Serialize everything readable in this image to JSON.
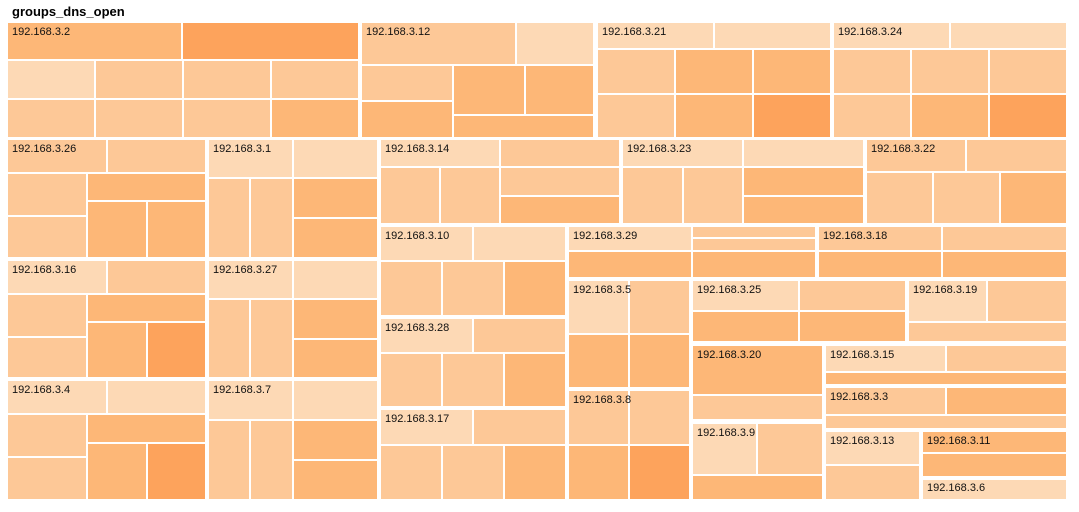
{
  "title": "groups_dns_open",
  "chart_data": {
    "type": "treemap",
    "title": "groups_dns_open",
    "color_scale": [
      "#fdd9b5",
      "#fdc897",
      "#fdb777",
      "#fda35c"
    ],
    "groups": [
      {
        "label": "192.168.3.2"
      },
      {
        "label": "192.168.3.12"
      },
      {
        "label": "192.168.3.21"
      },
      {
        "label": "192.168.3.24"
      },
      {
        "label": "192.168.3.26"
      },
      {
        "label": "192.168.3.1"
      },
      {
        "label": "192.168.3.14"
      },
      {
        "label": "192.168.3.23"
      },
      {
        "label": "192.168.3.22"
      },
      {
        "label": "192.168.3.10"
      },
      {
        "label": "192.168.3.29"
      },
      {
        "label": "192.168.3.18"
      },
      {
        "label": "192.168.3.16"
      },
      {
        "label": "192.168.3.27"
      },
      {
        "label": "192.168.3.5"
      },
      {
        "label": "192.168.3.25"
      },
      {
        "label": "192.168.3.19"
      },
      {
        "label": "192.168.3.28"
      },
      {
        "label": "192.168.3.20"
      },
      {
        "label": "192.168.3.15"
      },
      {
        "label": "192.168.3.4"
      },
      {
        "label": "192.168.3.7"
      },
      {
        "label": "192.168.3.8"
      },
      {
        "label": "192.168.3.3"
      },
      {
        "label": "192.168.3.17"
      },
      {
        "label": "192.168.3.9"
      },
      {
        "label": "192.168.3.13"
      },
      {
        "label": "192.168.3.11"
      },
      {
        "label": "192.168.3.6"
      }
    ]
  }
}
